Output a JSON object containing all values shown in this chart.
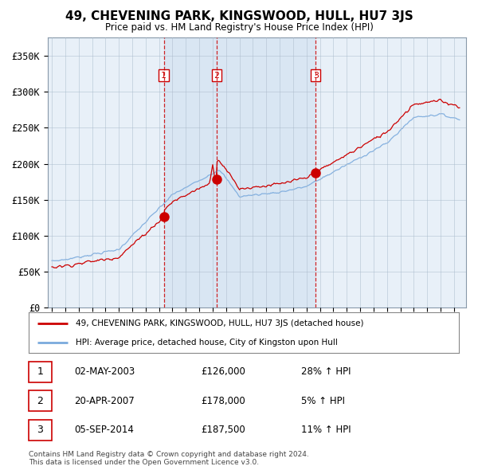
{
  "title": "49, CHEVENING PARK, KINGSWOOD, HULL, HU7 3JS",
  "subtitle": "Price paid vs. HM Land Registry's House Price Index (HPI)",
  "ylim": [
    0,
    375000
  ],
  "yticks": [
    0,
    50000,
    100000,
    150000,
    200000,
    250000,
    300000,
    350000
  ],
  "ytick_labels": [
    "£0",
    "£50K",
    "£100K",
    "£150K",
    "£200K",
    "£250K",
    "£300K",
    "£350K"
  ],
  "sales": [
    {
      "date": 2003.35,
      "price": 126000,
      "label": "1"
    },
    {
      "date": 2007.3,
      "price": 178000,
      "label": "2"
    },
    {
      "date": 2014.68,
      "price": 187500,
      "label": "3"
    }
  ],
  "legend_red": "49, CHEVENING PARK, KINGSWOOD, HULL, HU7 3JS (detached house)",
  "legend_blue": "HPI: Average price, detached house, City of Kingston upon Hull",
  "table_rows": [
    {
      "num": "1",
      "date": "02-MAY-2003",
      "price": "£126,000",
      "change": "28% ↑ HPI"
    },
    {
      "num": "2",
      "date": "20-APR-2007",
      "price": "£178,000",
      "change": "5% ↑ HPI"
    },
    {
      "num": "3",
      "date": "05-SEP-2014",
      "price": "£187,500",
      "change": "11% ↑ HPI"
    }
  ],
  "footer": "Contains HM Land Registry data © Crown copyright and database right 2024.\nThis data is licensed under the Open Government Licence v3.0.",
  "bg_color": "#ffffff",
  "plot_bg": "#e8f0f8",
  "grid_color": "#aabbcc",
  "red_color": "#cc0000",
  "blue_color": "#7aaadd",
  "shade_color": "#ccddf0"
}
